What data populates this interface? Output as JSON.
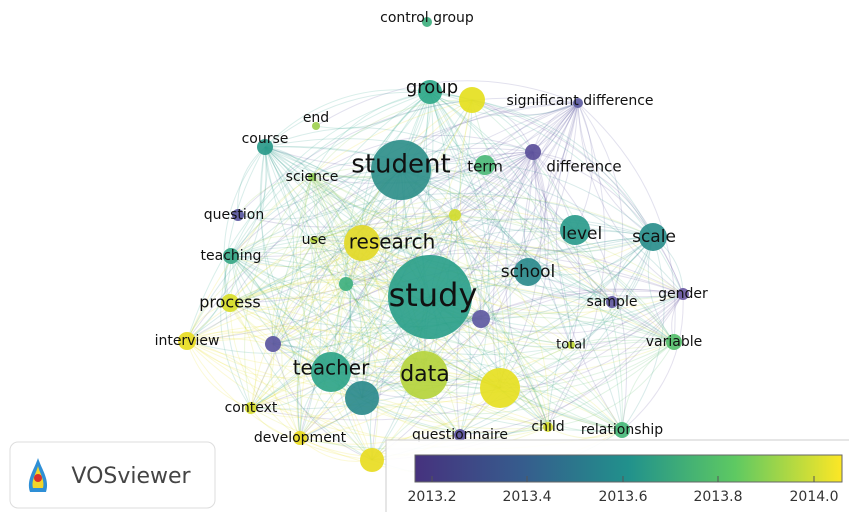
{
  "nodes": [
    {
      "label": "control group",
      "color": "#3fb07f"
    },
    {
      "label": "group",
      "color": "#2fa889"
    },
    {
      "label": "significant difference",
      "color": "#5c5b9f"
    },
    {
      "label": "end",
      "color": "#9fd050"
    },
    {
      "label": "course",
      "color": "#2a9a8a"
    },
    {
      "label": "student",
      "color": "#2f8f8a"
    },
    {
      "label": "term",
      "color": "#4cb878"
    },
    {
      "label": "difference",
      "color": "#5b4f9a"
    },
    {
      "label": "science",
      "color": "#8fcc55"
    },
    {
      "label": "question",
      "color": "#5a57a0"
    },
    {
      "label": "research",
      "color": "#e2d928"
    },
    {
      "label": "use",
      "color": "#b8d740"
    },
    {
      "label": "level",
      "color": "#2a9b8b"
    },
    {
      "label": "scale",
      "color": "#2a8e8c"
    },
    {
      "label": "teaching",
      "color": "#35a686"
    },
    {
      "label": "school",
      "color": "#2b8a8c"
    },
    {
      "label": "study",
      "color": "#2b9f8a"
    },
    {
      "label": "process",
      "color": "#d9de2a"
    },
    {
      "label": "sample",
      "color": "#6258a0"
    },
    {
      "label": "gender",
      "color": "#6b5aa3"
    },
    {
      "label": "interview",
      "color": "#e8dc22"
    },
    {
      "label": "total",
      "color": "#c4da3a"
    },
    {
      "label": "variable",
      "color": "#56bf6c"
    },
    {
      "label": "teacher",
      "color": "#2ea488"
    },
    {
      "label": "data",
      "color": "#b5d43c"
    },
    {
      "label": "context",
      "color": "#d6dc2e"
    },
    {
      "label": "development",
      "color": "#ecdc20"
    },
    {
      "label": "questionnaire",
      "color": "#5a50a0"
    },
    {
      "label": "child",
      "color": "#d8dd2c"
    },
    {
      "label": "relationship",
      "color": "#48b87a"
    }
  ],
  "legend": {
    "ticks": [
      "2013.2",
      "2013.4",
      "2013.6",
      "2013.8",
      "2014.0"
    ]
  },
  "logo": {
    "text": "VOSviewer"
  }
}
